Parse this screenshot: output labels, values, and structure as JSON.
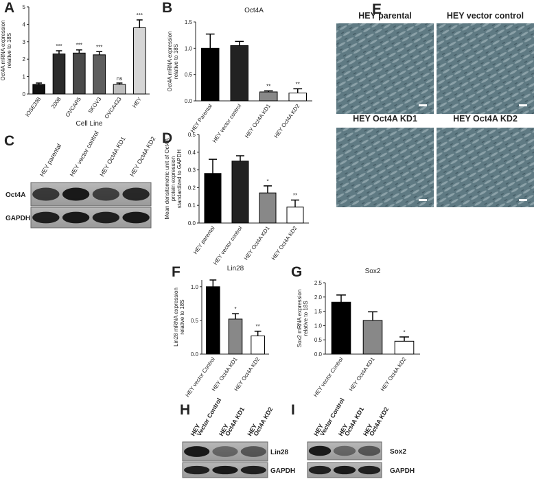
{
  "chart_data": [
    {
      "panel": "A",
      "type": "bar",
      "y_label": [
        "Oct4A mRNA expression",
        "relative to 18S"
      ],
      "x_label": "Cell Line",
      "categories": [
        "IOSE398",
        "2008",
        "OVCAR5",
        "SKOV3",
        "OVCA433",
        "HEY"
      ],
      "values": [
        0.55,
        2.3,
        2.35,
        2.25,
        0.55,
        3.8
      ],
      "errors": [
        0.08,
        0.18,
        0.18,
        0.18,
        0.08,
        0.45
      ],
      "annotations": [
        "",
        "***",
        "***",
        "***",
        "ns",
        "***"
      ],
      "colors": [
        "#111111",
        "#2b2b2b",
        "#4a4a4a",
        "#5e5e5e",
        "#bdbdbd",
        "#d6d6d6"
      ],
      "ylim": [
        0,
        5
      ],
      "yticks": [
        0,
        1,
        2,
        3,
        4,
        5
      ]
    },
    {
      "panel": "B",
      "type": "bar",
      "title": "Oct4A",
      "y_label": [
        "Oct4A mRNA expression",
        "relative to 18S"
      ],
      "categories": [
        "HEY Parental",
        "HEY vector control",
        "HEY Oct4A KD1",
        "HEY Oct4A KD2"
      ],
      "values": [
        1.0,
        1.05,
        0.17,
        0.15
      ],
      "errors": [
        0.27,
        0.08,
        0.02,
        0.08
      ],
      "annotations": [
        null,
        null,
        "**",
        "**"
      ],
      "colors": [
        "#000000",
        "#222222",
        "#888888",
        "#ffffff"
      ],
      "ylim": [
        0,
        1.5
      ],
      "yticks": [
        {
          "value": 0,
          "label": "0.0"
        },
        {
          "value": 0.5,
          "label": "0.5"
        },
        {
          "value": 1,
          "label": "1.0"
        },
        {
          "value": 1.5,
          "label": "1.5"
        }
      ]
    },
    {
      "panel": "D",
      "type": "bar",
      "y_label": [
        "Mean densitometric unit of Oct4A",
        "protein expression",
        "standardized to GAPDH"
      ],
      "categories": [
        "HEY parental",
        "HEY vector control",
        "HEY Oct4A KD1",
        "HEY Oct4A KD2"
      ],
      "values": [
        0.28,
        0.35,
        0.17,
        0.09
      ],
      "errors": [
        0.08,
        0.03,
        0.04,
        0.04
      ],
      "annotations": [
        null,
        null,
        "*",
        "**"
      ],
      "colors": [
        "#000000",
        "#222222",
        "#888888",
        "#ffffff"
      ],
      "ylim": [
        0,
        0.5
      ],
      "yticks": [
        {
          "value": 0,
          "label": "0.0"
        },
        0.1,
        0.2,
        0.3,
        0.4,
        0.5
      ]
    },
    {
      "panel": "F",
      "type": "bar",
      "title": "Lin28",
      "y_label": [
        "Lin28 mRNA expression",
        "relative to 18S"
      ],
      "categories": [
        "HEY vector Control",
        "HEY Oct4A KD1",
        "HEY Oct4A KD2"
      ],
      "values": [
        1.0,
        0.52,
        0.27
      ],
      "errors": [
        0.1,
        0.08,
        0.07
      ],
      "annotations": [
        null,
        "*",
        "**"
      ],
      "colors": [
        "#000000",
        "#888888",
        "#ffffff"
      ],
      "ylim": [
        0,
        1.1
      ],
      "yticks": [
        {
          "value": 0,
          "label": "0.0"
        },
        0.5,
        {
          "value": 1,
          "label": "1.0"
        }
      ]
    },
    {
      "panel": "G",
      "type": "bar",
      "title": "Sox2",
      "y_label": [
        "Sox2 mRNA expression",
        "relative to 18S"
      ],
      "categories": [
        "HEY vector Control",
        "HEY Oct4A KD1",
        "HEY Oct4A KD2"
      ],
      "values": [
        1.82,
        1.18,
        0.45
      ],
      "errors": [
        0.25,
        0.3,
        0.15
      ],
      "annotations": [
        null,
        null,
        "*"
      ],
      "colors": [
        "#000000",
        "#888888",
        "#ffffff"
      ],
      "ylim": [
        0,
        2.5
      ],
      "yticks": [
        {
          "value": 0,
          "label": "0.0"
        },
        0.5,
        {
          "value": 1,
          "label": "1.0"
        },
        1.5,
        {
          "value": 2,
          "label": "2.0"
        },
        2.5
      ]
    }
  ],
  "blots": [
    {
      "panel": "C",
      "lanes": [
        [
          "HEY parental"
        ],
        [
          "HEY vector control"
        ],
        [
          "HEY Oct4A KD1"
        ],
        [
          "HEY Oct4A KD2"
        ]
      ],
      "rows": [
        "Oct4A",
        "GAPDH"
      ]
    },
    {
      "panel": "H",
      "lanes": [
        [
          "HEY",
          "Vector Control"
        ],
        [
          "HEY",
          "Oct4A KD1"
        ],
        [
          "HEY",
          "Oct4A KD2"
        ]
      ],
      "rows": [
        "Lin28",
        "GAPDH"
      ]
    },
    {
      "panel": "I",
      "lanes": [
        [
          "HEY",
          "Vector Control"
        ],
        [
          "HEY",
          "Oct4A KD1"
        ],
        [
          "HEY",
          "Oct4A KD2"
        ]
      ],
      "rows": [
        "Sox2",
        "GAPDH"
      ]
    }
  ],
  "images": {
    "panel": "E",
    "labels": [
      "HEY parental",
      "HEY vector control",
      "HEY Oct4A KD1",
      "HEY Oct4A KD2"
    ]
  }
}
